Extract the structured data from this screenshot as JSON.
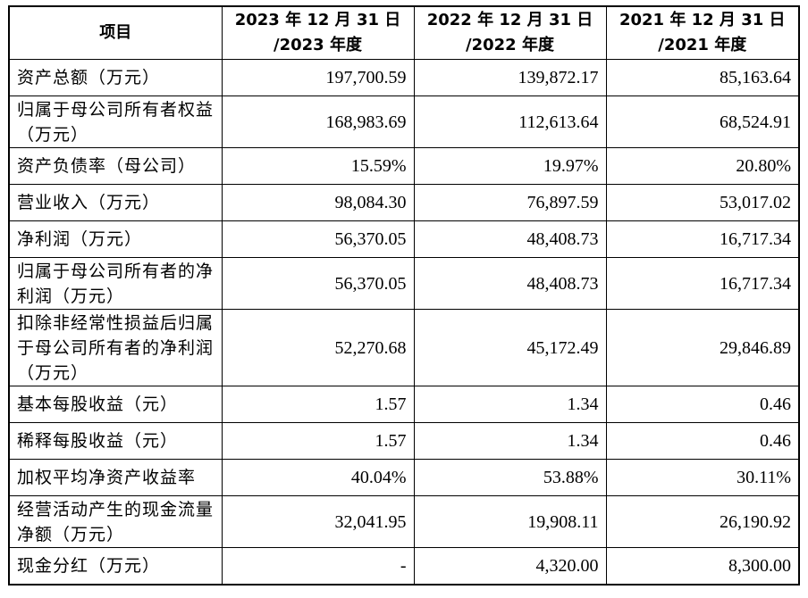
{
  "header": {
    "col_item": "项目",
    "col_2023_line1": "2023 年 12 月 31 日",
    "col_2023_line2": "/2023 年度",
    "col_2022_line1": "2022 年 12 月 31 日",
    "col_2022_line2": "/2022 年度",
    "col_2021_line1": "2021 年 12 月 31 日",
    "col_2021_line2": "/2021 年度"
  },
  "rows": [
    {
      "label": "资产总额（万元）",
      "v2023": "197,700.59",
      "v2022": "139,872.17",
      "v2021": "85,163.64"
    },
    {
      "label": "归属于母公司所有者权益（万元）",
      "v2023": "168,983.69",
      "v2022": "112,613.64",
      "v2021": "68,524.91"
    },
    {
      "label": "资产负债率（母公司）",
      "v2023": "15.59%",
      "v2022": "19.97%",
      "v2021": "20.80%"
    },
    {
      "label": "营业收入（万元）",
      "v2023": "98,084.30",
      "v2022": "76,897.59",
      "v2021": "53,017.02"
    },
    {
      "label": "净利润（万元）",
      "v2023": "56,370.05",
      "v2022": "48,408.73",
      "v2021": "16,717.34"
    },
    {
      "label": "归属于母公司所有者的净利润（万元）",
      "v2023": "56,370.05",
      "v2022": "48,408.73",
      "v2021": "16,717.34"
    },
    {
      "label": "扣除非经常性损益后归属于母公司所有者的净利润（万元）",
      "v2023": "52,270.68",
      "v2022": "45,172.49",
      "v2021": "29,846.89"
    },
    {
      "label": "基本每股收益（元）",
      "v2023": "1.57",
      "v2022": "1.34",
      "v2021": "0.46"
    },
    {
      "label": "稀释每股收益（元）",
      "v2023": "1.57",
      "v2022": "1.34",
      "v2021": "0.46"
    },
    {
      "label": "加权平均净资产收益率",
      "v2023": "40.04%",
      "v2022": "53.88%",
      "v2021": "30.11%"
    },
    {
      "label": "经营活动产生的现金流量净额（万元）",
      "v2023": "32,041.95",
      "v2022": "19,908.11",
      "v2021": "26,190.92"
    },
    {
      "label": "现金分红（万元）",
      "v2023": "-",
      "v2022": "4,320.00",
      "v2021": "8,300.00"
    }
  ]
}
